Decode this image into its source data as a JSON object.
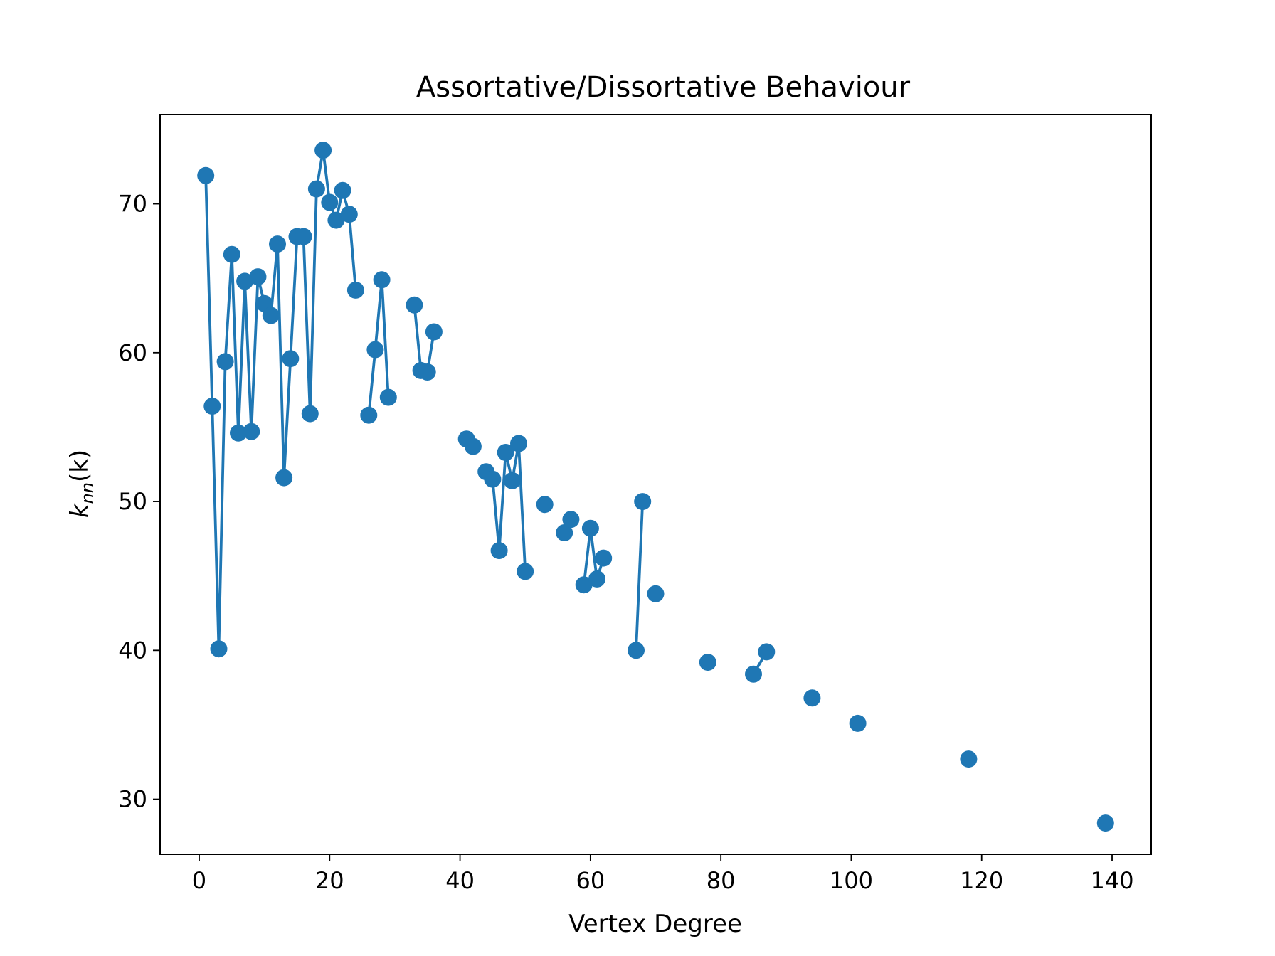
{
  "chart_data": {
    "type": "line",
    "title": "Assortative/Dissortative Behaviour",
    "xlabel": "Vertex Degree",
    "ylabel_main": "k",
    "ylabel_subscript": "nn",
    "ylabel_suffix": "(k)",
    "xlim": [
      -6,
      146
    ],
    "ylim": [
      26.3,
      76.0
    ],
    "xticks": [
      0,
      20,
      40,
      60,
      80,
      100,
      120,
      140
    ],
    "yticks": [
      30,
      40,
      50,
      60,
      70
    ],
    "grid": false,
    "legend": "none",
    "color": "#1f77b4",
    "marker": "circle",
    "line_segments": [
      [
        [
          1,
          71.9
        ],
        [
          2,
          56.4
        ],
        [
          3,
          40.1
        ],
        [
          4,
          59.4
        ],
        [
          5,
          66.6
        ],
        [
          6,
          54.6
        ],
        [
          7,
          64.8
        ],
        [
          8,
          54.7
        ],
        [
          9,
          65.1
        ],
        [
          10,
          63.3
        ],
        [
          11,
          62.5
        ],
        [
          12,
          67.3
        ],
        [
          13,
          51.6
        ],
        [
          14,
          59.6
        ],
        [
          15,
          67.8
        ],
        [
          16,
          67.8
        ],
        [
          17,
          55.9
        ],
        [
          18,
          71.0
        ],
        [
          19,
          73.6
        ],
        [
          20,
          70.1
        ],
        [
          21,
          68.9
        ],
        [
          22,
          70.9
        ],
        [
          23,
          69.3
        ],
        [
          24,
          64.2
        ]
      ],
      [
        [
          26,
          55.8
        ],
        [
          27,
          60.2
        ],
        [
          28,
          64.9
        ],
        [
          29,
          57.0
        ]
      ],
      [
        [
          33,
          63.2
        ],
        [
          34,
          58.8
        ],
        [
          35,
          58.7
        ],
        [
          36,
          61.4
        ]
      ],
      [
        [
          41,
          54.2
        ],
        [
          42,
          53.7
        ]
      ],
      [
        [
          44,
          52.0
        ],
        [
          45,
          51.5
        ],
        [
          46,
          46.7
        ],
        [
          47,
          53.3
        ],
        [
          48,
          51.4
        ],
        [
          49,
          53.9
        ],
        [
          50,
          45.3
        ]
      ],
      [
        [
          53,
          49.8
        ]
      ],
      [
        [
          56,
          47.9
        ],
        [
          57,
          48.8
        ]
      ],
      [
        [
          59,
          44.4
        ],
        [
          60,
          48.2
        ],
        [
          61,
          44.8
        ],
        [
          62,
          46.2
        ]
      ],
      [
        [
          67,
          40.0
        ],
        [
          68,
          50.0
        ]
      ],
      [
        [
          70,
          43.8
        ]
      ],
      [
        [
          78,
          39.2
        ]
      ],
      [
        [
          85,
          38.4
        ],
        [
          87,
          39.9
        ]
      ],
      [
        [
          94,
          36.8
        ]
      ],
      [
        [
          101,
          35.1
        ]
      ],
      [
        [
          118,
          32.7
        ]
      ],
      [
        [
          139,
          28.4
        ]
      ]
    ]
  }
}
